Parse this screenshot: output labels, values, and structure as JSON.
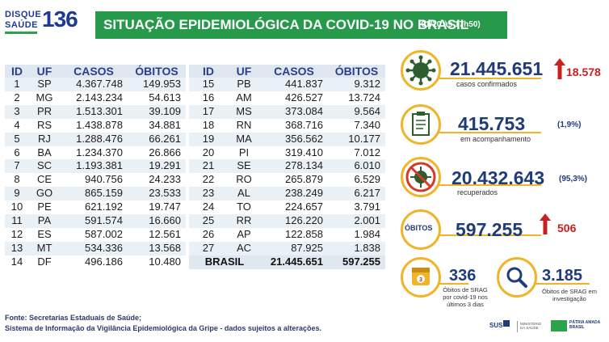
{
  "logo": {
    "line1": "DISQUE",
    "line2": "SAÚDE",
    "number": "136"
  },
  "title": "SITUAÇÃO EPIDEMIOLÓGICA DA COVID-19 NO BRASIL",
  "date": "(01/10 às 17h50)",
  "table": {
    "headers": [
      "ID",
      "UF",
      "CASOS",
      "ÓBITOS"
    ],
    "left": [
      [
        "1",
        "SP",
        "4.367.748",
        "149.953"
      ],
      [
        "2",
        "MG",
        "2.143.234",
        "54.613"
      ],
      [
        "3",
        "PR",
        "1.513.301",
        "39.109"
      ],
      [
        "4",
        "RS",
        "1.438.878",
        "34.881"
      ],
      [
        "5",
        "RJ",
        "1.288.476",
        "66.261"
      ],
      [
        "6",
        "BA",
        "1.234.370",
        "26.866"
      ],
      [
        "7",
        "SC",
        "1.193.381",
        "19.291"
      ],
      [
        "8",
        "CE",
        "940.756",
        "24.233"
      ],
      [
        "9",
        "GO",
        "865.159",
        "23.533"
      ],
      [
        "10",
        "PE",
        "621.192",
        "19.747"
      ],
      [
        "11",
        "PA",
        "591.574",
        "16.660"
      ],
      [
        "12",
        "ES",
        "587.002",
        "12.561"
      ],
      [
        "13",
        "MT",
        "534.336",
        "13.568"
      ],
      [
        "14",
        "DF",
        "496.186",
        "10.480"
      ]
    ],
    "right": [
      [
        "15",
        "PB",
        "441.837",
        "9.312"
      ],
      [
        "16",
        "AM",
        "426.527",
        "13.724"
      ],
      [
        "17",
        "MS",
        "373.084",
        "9.564"
      ],
      [
        "18",
        "RN",
        "368.716",
        "7.340"
      ],
      [
        "19",
        "MA",
        "356.562",
        "10.177"
      ],
      [
        "20",
        "PI",
        "319.410",
        "7.012"
      ],
      [
        "21",
        "SE",
        "278.134",
        "6.010"
      ],
      [
        "22",
        "RO",
        "265.879",
        "6.529"
      ],
      [
        "23",
        "AL",
        "238.249",
        "6.217"
      ],
      [
        "24",
        "TO",
        "224.657",
        "3.791"
      ],
      [
        "25",
        "RR",
        "126.220",
        "2.001"
      ],
      [
        "26",
        "AP",
        "122.858",
        "1.984"
      ],
      [
        "27",
        "AC",
        "87.925",
        "1.838"
      ]
    ],
    "total": {
      "label": "BRASIL",
      "casos": "21.445.651",
      "obitos": "597.255"
    }
  },
  "indicators": {
    "confirmed": {
      "value": "21.445.651",
      "label": "casos confirmados",
      "delta": "18.578"
    },
    "monitoring": {
      "value": "415.753",
      "label": "em acompanhamento",
      "pct": "(1,9%)"
    },
    "recovered": {
      "value": "20.432.643",
      "label": "recuperados",
      "pct": "(95,3%)"
    },
    "deaths": {
      "tag": "ÓBITOS",
      "value": "597.255",
      "delta": "506"
    },
    "srag_deaths": {
      "value": "336",
      "label": "Óbitos de SRAG por covid-19 nos últimos 3 dias"
    },
    "srag_investigation": {
      "value": "3.185",
      "label": "Óbitos de SRAG em investigação"
    }
  },
  "footer": {
    "line1": "Fonte: Secretarias Estaduais de Saúde;",
    "line2": "Sistema de Informação da Vigilância Epidemiológica da Gripe - dados sujeitos a alterações."
  },
  "logos": {
    "sus": "SUS",
    "ministry": "MINISTÉRIO DA SAÚDE",
    "brasil": "PÁTRIA AMADA BRASIL"
  },
  "colors": {
    "green": "#26994a",
    "navy": "#1f3b7a",
    "yellow": "#f0b429",
    "red": "#c8201e"
  },
  "icons": [
    "virus-icon",
    "clipboard-icon",
    "crossed-virus-icon",
    "calendar-icon",
    "magnifier-icon",
    "arrow-up-icon"
  ]
}
